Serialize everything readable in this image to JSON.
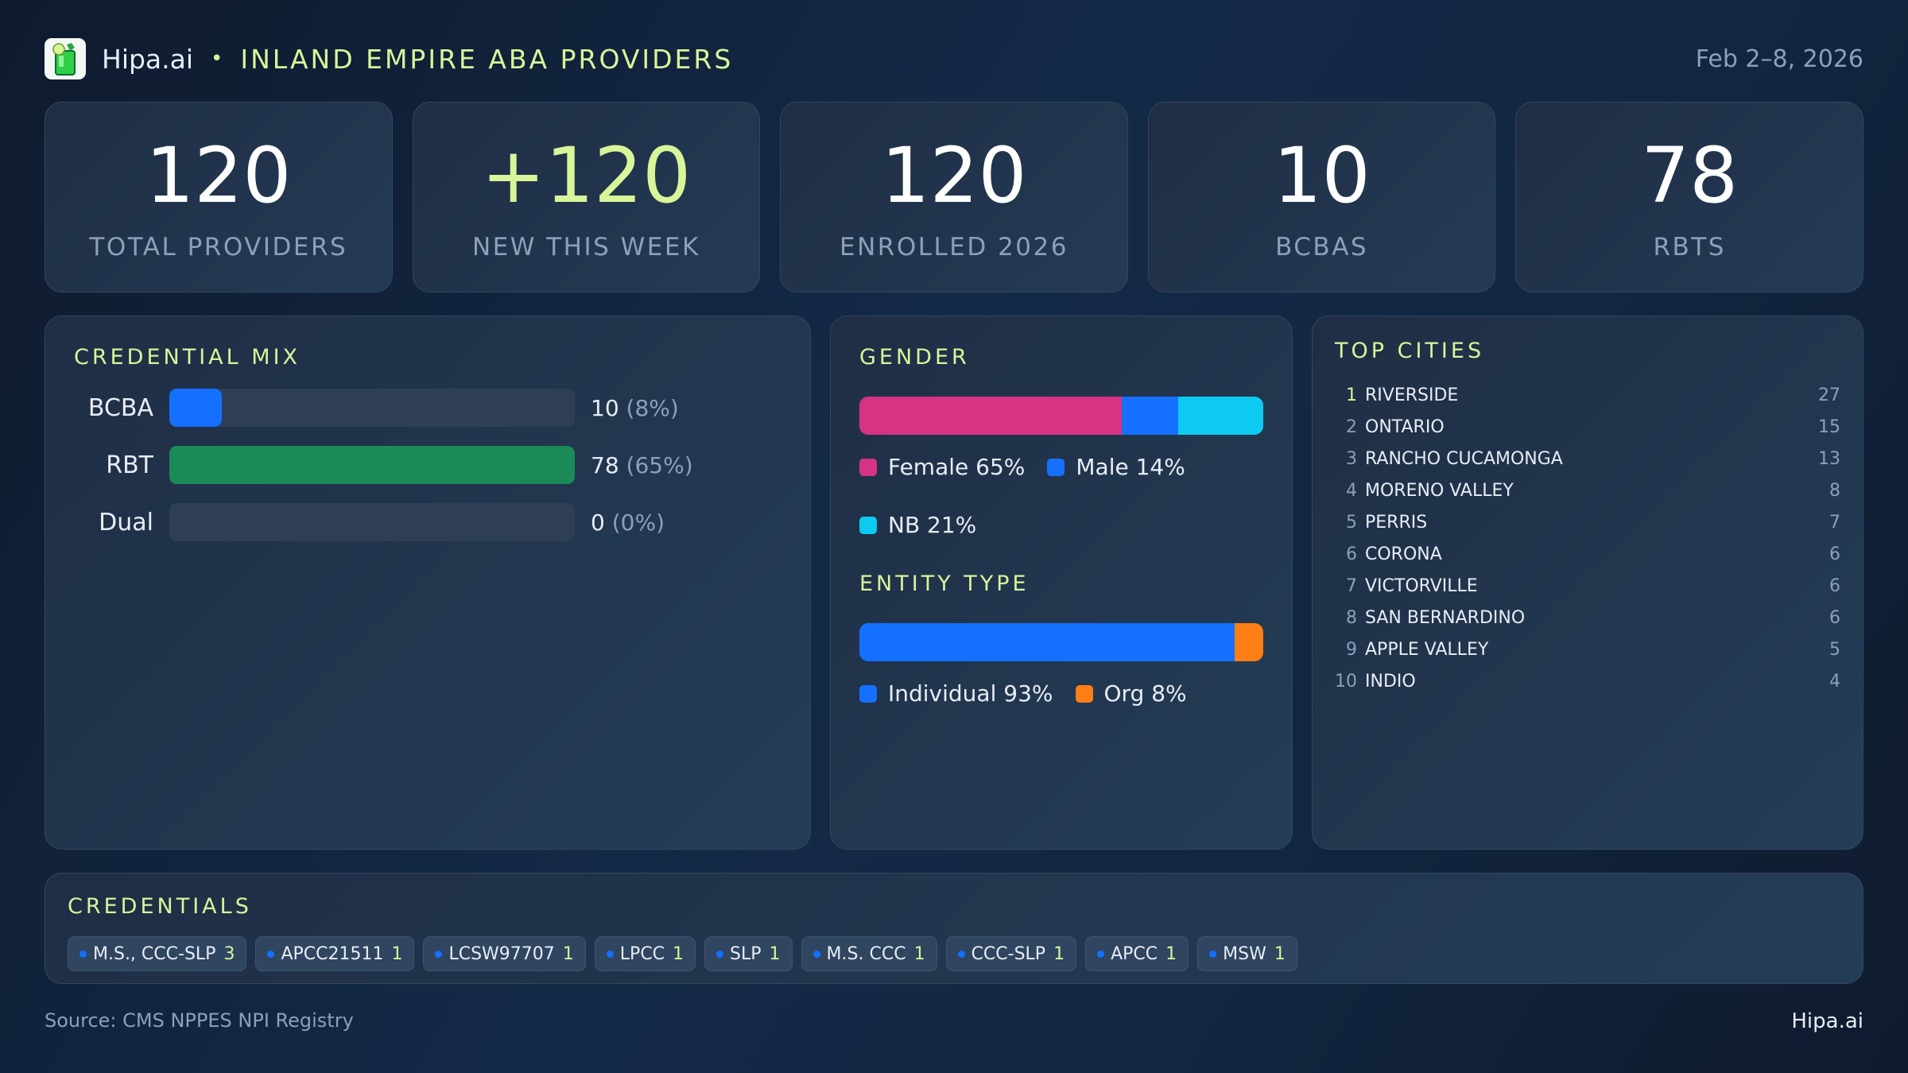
{
  "header": {
    "brand": "Hipa.ai",
    "separator": "•",
    "title": "INLAND EMPIRE ABA PROVIDERS",
    "date_range": "Feb 2–8, 2026"
  },
  "kpis": [
    {
      "value": "120",
      "label": "TOTAL PROVIDERS"
    },
    {
      "value": "+120",
      "label": "NEW THIS WEEK"
    },
    {
      "value": "120",
      "label": "ENROLLED 2026"
    },
    {
      "value": "10",
      "label": "BCBAS"
    },
    {
      "value": "78",
      "label": "RBTS"
    }
  ],
  "credential_mix": {
    "title": "CREDENTIAL MIX",
    "rows": [
      {
        "label": "BCBA",
        "count": "10",
        "pct": "(8%)",
        "fill": 13,
        "color": "#1570ff"
      },
      {
        "label": "RBT",
        "count": "78",
        "pct": "(65%)",
        "fill": 100,
        "color": "#1b8a56"
      },
      {
        "label": "Dual",
        "count": "0",
        "pct": "(0%)",
        "fill": 0,
        "color": "#1570ff"
      }
    ]
  },
  "gender": {
    "title": "GENDER",
    "segments": [
      {
        "label": "Female 65%",
        "value": 65,
        "color": "#d63384"
      },
      {
        "label": "Male 14%",
        "value": 14,
        "color": "#1570ff"
      },
      {
        "label": "NB 21%",
        "value": 21,
        "color": "#0dcaf0"
      }
    ]
  },
  "entity_type": {
    "title": "ENTITY TYPE",
    "segments": [
      {
        "label": "Individual 93%",
        "value": 93,
        "color": "#1570ff"
      },
      {
        "label": "Org 8%",
        "value": 7,
        "color": "#fd7e14"
      }
    ]
  },
  "top_cities": {
    "title": "TOP CITIES",
    "items": [
      {
        "rank": "1",
        "name": "RIVERSIDE",
        "count": "27"
      },
      {
        "rank": "2",
        "name": "ONTARIO",
        "count": "15"
      },
      {
        "rank": "3",
        "name": "RANCHO CUCAMONGA",
        "count": "13"
      },
      {
        "rank": "4",
        "name": "MORENO VALLEY",
        "count": "8"
      },
      {
        "rank": "5",
        "name": "PERRIS",
        "count": "7"
      },
      {
        "rank": "6",
        "name": "CORONA",
        "count": "6"
      },
      {
        "rank": "7",
        "name": "VICTORVILLE",
        "count": "6"
      },
      {
        "rank": "8",
        "name": "SAN BERNARDINO",
        "count": "6"
      },
      {
        "rank": "9",
        "name": "APPLE VALLEY",
        "count": "5"
      },
      {
        "rank": "10",
        "name": "INDIO",
        "count": "4"
      }
    ]
  },
  "credentials": {
    "title": "CREDENTIALS",
    "chips": [
      {
        "name": "M.S., CCC-SLP",
        "count": "3"
      },
      {
        "name": "APCC21511",
        "count": "1"
      },
      {
        "name": "LCSW97707",
        "count": "1"
      },
      {
        "name": "LPCC",
        "count": "1"
      },
      {
        "name": "SLP",
        "count": "1"
      },
      {
        "name": "M.S. CCC",
        "count": "1"
      },
      {
        "name": "CCC-SLP",
        "count": "1"
      },
      {
        "name": "APCC",
        "count": "1"
      },
      {
        "name": "MSW",
        "count": "1"
      }
    ]
  },
  "footer": {
    "source": "Source: CMS NPPES NPI Registry",
    "brand": "Hipa.ai"
  },
  "colors": {
    "accent": "#d8f59a",
    "muted": "#8e9fba",
    "blue": "#1570ff",
    "green": "#1b8a56",
    "pink": "#d63384",
    "cyan": "#0dcaf0",
    "orange": "#fd7e14"
  }
}
